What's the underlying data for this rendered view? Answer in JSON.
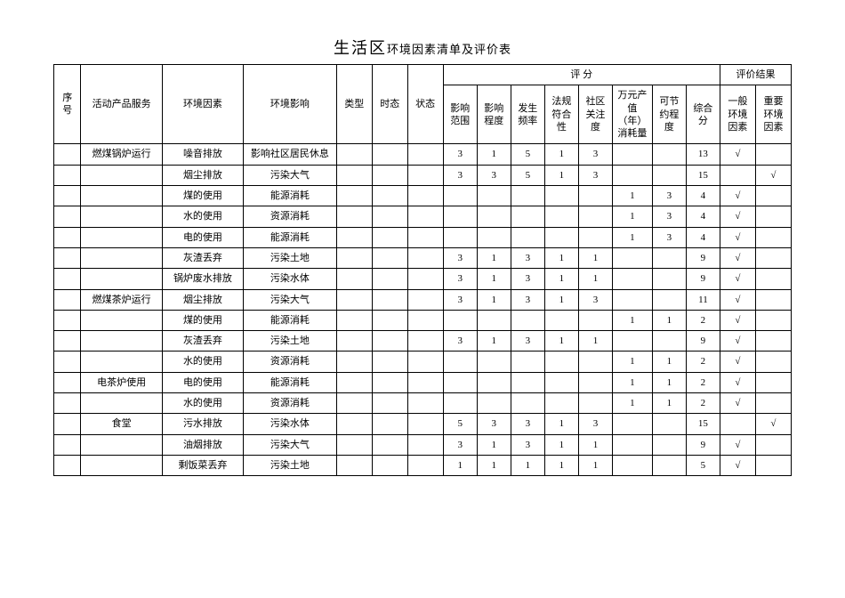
{
  "title_main": "生活区",
  "title_sub": "环境因素清单及评价表",
  "headers": {
    "seq": "序号",
    "activity": "活动产品服务",
    "factor": "环境因素",
    "impact": "环境影响",
    "type": "类型",
    "time": "时态",
    "state": "状态",
    "score_group": "评 分",
    "s1": "影响范围",
    "s2": "影响程度",
    "s3": "发生频率",
    "s4": "法规符合性",
    "s5": "社区关注度",
    "s6": "万元产值（年）消耗量",
    "s7": "可节约程度",
    "s8": "综合分",
    "result_group": "评价结果",
    "r1": "一般环境因素",
    "r2": "重要环境因素"
  },
  "rows": [
    {
      "activity": "燃煤锅炉运行",
      "factor": "噪音排放",
      "impact": "影响社区居民休息",
      "s1": "3",
      "s2": "1",
      "s3": "5",
      "s4": "1",
      "s5": "3",
      "s6": "",
      "s7": "",
      "s8": "13",
      "r1": "√",
      "r2": ""
    },
    {
      "activity": "",
      "factor": "烟尘排放",
      "impact": "污染大气",
      "s1": "3",
      "s2": "3",
      "s3": "5",
      "s4": "1",
      "s5": "3",
      "s6": "",
      "s7": "",
      "s8": "15",
      "r1": "",
      "r2": "√"
    },
    {
      "activity": "",
      "factor": "煤的使用",
      "impact": "能源消耗",
      "s1": "",
      "s2": "",
      "s3": "",
      "s4": "",
      "s5": "",
      "s6": "1",
      "s7": "3",
      "s8": "4",
      "r1": "√",
      "r2": ""
    },
    {
      "activity": "",
      "factor": "水的使用",
      "impact": "资源消耗",
      "s1": "",
      "s2": "",
      "s3": "",
      "s4": "",
      "s5": "",
      "s6": "1",
      "s7": "3",
      "s8": "4",
      "r1": "√",
      "r2": ""
    },
    {
      "activity": "",
      "factor": "电的使用",
      "impact": "能源消耗",
      "s1": "",
      "s2": "",
      "s3": "",
      "s4": "",
      "s5": "",
      "s6": "1",
      "s7": "3",
      "s8": "4",
      "r1": "√",
      "r2": ""
    },
    {
      "activity": "",
      "factor": "灰渣丢弃",
      "impact": "污染土地",
      "s1": "3",
      "s2": "1",
      "s3": "3",
      "s4": "1",
      "s5": "1",
      "s6": "",
      "s7": "",
      "s8": "9",
      "r1": "√",
      "r2": ""
    },
    {
      "activity": "",
      "factor": "锅炉废水排放",
      "impact": "污染水体",
      "s1": "3",
      "s2": "1",
      "s3": "3",
      "s4": "1",
      "s5": "1",
      "s6": "",
      "s7": "",
      "s8": "9",
      "r1": "√",
      "r2": ""
    },
    {
      "activity": "燃煤茶炉运行",
      "factor": "烟尘排放",
      "impact": "污染大气",
      "s1": "3",
      "s2": "1",
      "s3": "3",
      "s4": "1",
      "s5": "3",
      "s6": "",
      "s7": "",
      "s8": "11",
      "r1": "√",
      "r2": ""
    },
    {
      "activity": "",
      "factor": "煤的使用",
      "impact": "能源消耗",
      "s1": "",
      "s2": "",
      "s3": "",
      "s4": "",
      "s5": "",
      "s6": "1",
      "s7": "1",
      "s8": "2",
      "r1": "√",
      "r2": ""
    },
    {
      "activity": "",
      "factor": "灰渣丢弃",
      "impact": "污染土地",
      "s1": "3",
      "s2": "1",
      "s3": "3",
      "s4": "1",
      "s5": "1",
      "s6": "",
      "s7": "",
      "s8": "9",
      "r1": "√",
      "r2": ""
    },
    {
      "activity": "",
      "factor": "水的使用",
      "impact": "资源消耗",
      "s1": "",
      "s2": "",
      "s3": "",
      "s4": "",
      "s5": "",
      "s6": "1",
      "s7": "1",
      "s8": "2",
      "r1": "√",
      "r2": ""
    },
    {
      "activity": "电茶炉使用",
      "factor": "电的使用",
      "impact": "能源消耗",
      "s1": "",
      "s2": "",
      "s3": "",
      "s4": "",
      "s5": "",
      "s6": "1",
      "s7": "1",
      "s8": "2",
      "r1": "√",
      "r2": ""
    },
    {
      "activity": "",
      "factor": "水的使用",
      "impact": "资源消耗",
      "s1": "",
      "s2": "",
      "s3": "",
      "s4": "",
      "s5": "",
      "s6": "1",
      "s7": "1",
      "s8": "2",
      "r1": "√",
      "r2": ""
    },
    {
      "activity": "食堂",
      "factor": "污水排放",
      "impact": "污染水体",
      "s1": "5",
      "s2": "3",
      "s3": "3",
      "s4": "1",
      "s5": "3",
      "s6": "",
      "s7": "",
      "s8": "15",
      "r1": "",
      "r2": "√"
    },
    {
      "activity": "",
      "factor": "油烟排放",
      "impact": "污染大气",
      "s1": "3",
      "s2": "1",
      "s3": "3",
      "s4": "1",
      "s5": "1",
      "s6": "",
      "s7": "",
      "s8": "9",
      "r1": "√",
      "r2": ""
    },
    {
      "activity": "",
      "factor": "剩饭菜丢弃",
      "impact": "污染土地",
      "s1": "1",
      "s2": "1",
      "s3": "1",
      "s4": "1",
      "s5": "1",
      "s6": "",
      "s7": "",
      "s8": "5",
      "r1": "√",
      "r2": ""
    }
  ]
}
